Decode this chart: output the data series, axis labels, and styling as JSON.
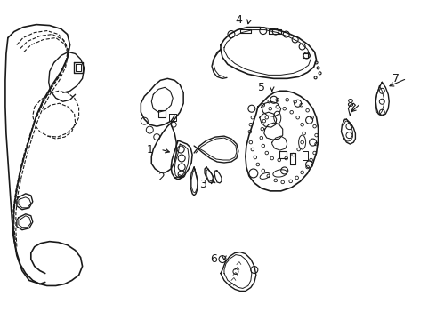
{
  "background_color": "#ffffff",
  "line_color": "#1a1a1a",
  "figsize": [
    4.9,
    3.6
  ],
  "dpi": 100
}
